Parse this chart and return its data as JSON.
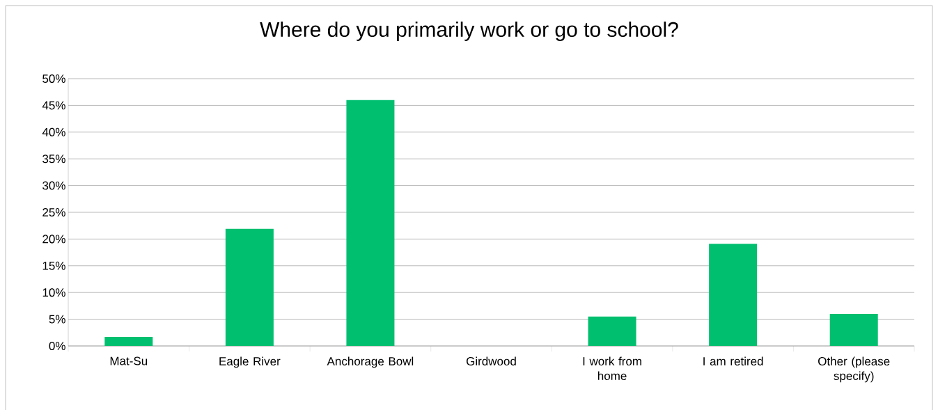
{
  "chart_data": {
    "type": "bar",
    "title": "Where do you primarily work or go to school?",
    "categories": [
      "Mat-Su",
      "Eagle River",
      "Anchorage Bowl",
      "Girdwood",
      "I work from home",
      "I am retired",
      "Other (please specify)"
    ],
    "values": [
      1.7,
      21.9,
      46.0,
      0,
      5.5,
      19.1,
      6.0
    ],
    "color": "#00bf6f",
    "ylim": [
      0,
      50
    ],
    "yticks": [
      {
        "value": 0,
        "label": "0%"
      },
      {
        "value": 5,
        "label": "5%"
      },
      {
        "value": 10,
        "label": "10%"
      },
      {
        "value": 15,
        "label": "15%"
      },
      {
        "value": 20,
        "label": "20%"
      },
      {
        "value": 25,
        "label": "25%"
      },
      {
        "value": 30,
        "label": "30%"
      },
      {
        "value": 35,
        "label": "35%"
      },
      {
        "value": 40,
        "label": "40%"
      },
      {
        "value": 45,
        "label": "45%"
      },
      {
        "value": 50,
        "label": "50%"
      }
    ],
    "grid": "y"
  }
}
